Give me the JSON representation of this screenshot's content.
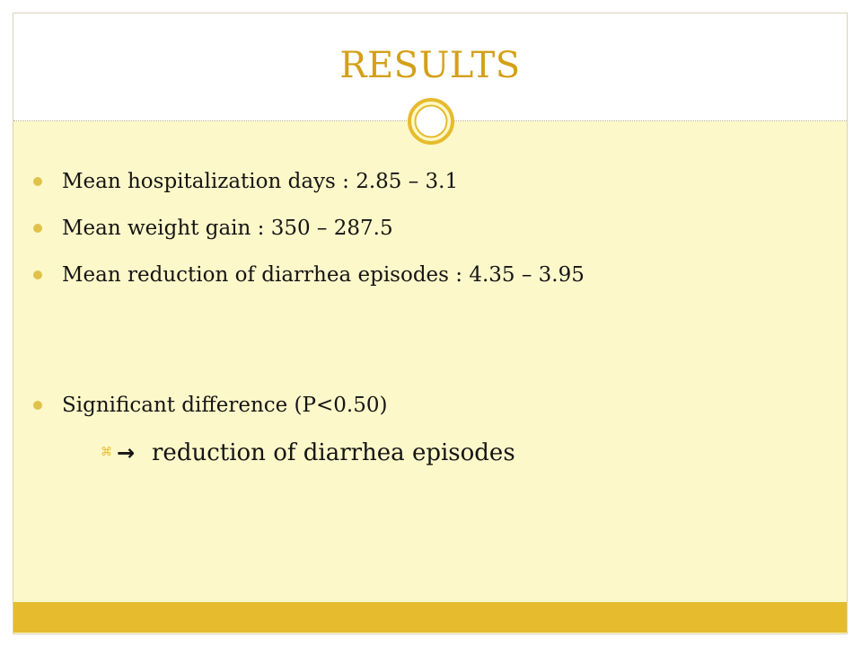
{
  "slide": {
    "title": "RESULTS",
    "bullets": [
      "Mean hospitalization days : 2.85 – 3.1",
      "Mean weight gain : 350 – 287.5",
      "Mean reduction of diarrhea episodes : 4.35 – 3.95",
      "Significant difference (P<0.50)"
    ],
    "sub_bullet": {
      "marker": "⌘",
      "arrow": "→",
      "text": "reduction of diarrhea episodes"
    }
  },
  "colors": {
    "title": "#d4a017",
    "background": "#fdf8c9",
    "accent_bar": "#e6bb2e",
    "bullet_dot": "#e0c24a",
    "text": "#141414"
  }
}
